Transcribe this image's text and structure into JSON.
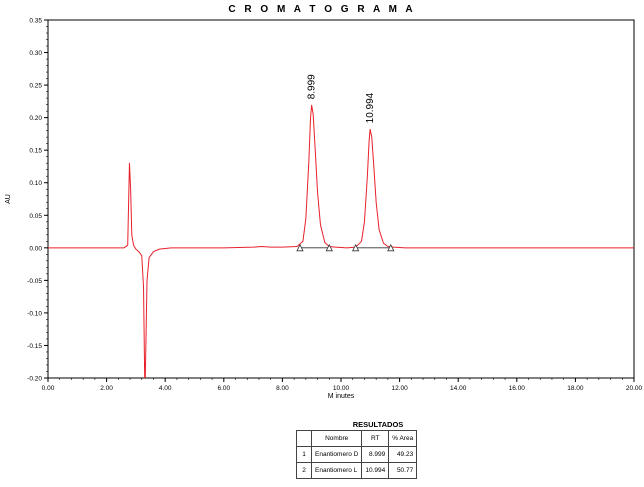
{
  "chart_data": {
    "type": "line",
    "title": "C R O M A T O G R A M A",
    "xlabel": "M inutes",
    "ylabel": "AU",
    "xlim": [
      0,
      20
    ],
    "ylim": [
      -0.2,
      0.35
    ],
    "x_ticks": [
      "0.00",
      "2.00",
      "4.00",
      "6.00",
      "8.00",
      "10.00",
      "12.00",
      "14.00",
      "16.00",
      "18.00",
      "20.00"
    ],
    "y_ticks": [
      "-0.20",
      "-0.15",
      "-0.10",
      "-0.05",
      "0.00",
      "0.05",
      "0.10",
      "0.15",
      "0.20",
      "0.25",
      "0.30",
      "0.35"
    ],
    "series": [
      {
        "color": "#e8202a",
        "x": [
          0,
          2.6,
          2.72,
          2.78,
          2.82,
          2.86,
          2.92,
          3.0,
          3.1,
          3.2,
          3.26,
          3.3,
          3.32,
          3.38,
          3.45,
          3.6,
          3.8,
          4.2,
          5.0,
          6.0,
          7.0,
          7.3,
          7.6,
          8.0,
          8.5,
          8.7,
          8.8,
          8.9,
          8.96,
          8.999,
          9.05,
          9.12,
          9.2,
          9.3,
          9.45,
          9.6,
          9.8,
          10.2,
          10.5,
          10.7,
          10.8,
          10.9,
          10.96,
          10.994,
          11.05,
          11.12,
          11.2,
          11.3,
          11.45,
          11.6,
          11.8,
          12.2,
          14.0,
          16.0,
          18.0,
          20.0
        ],
        "values": [
          0,
          0,
          0.004,
          0.13,
          0.09,
          0.02,
          0.004,
          -0.002,
          -0.006,
          -0.012,
          -0.06,
          -0.2,
          -0.2,
          -0.05,
          -0.015,
          -0.006,
          -0.002,
          0,
          0,
          0,
          0.001,
          0.002,
          0.001,
          0.001,
          0.002,
          0.01,
          0.045,
          0.13,
          0.2,
          0.219,
          0.205,
          0.15,
          0.085,
          0.035,
          0.008,
          0.002,
          0.001,
          0,
          0.001,
          0.01,
          0.04,
          0.11,
          0.165,
          0.182,
          0.17,
          0.125,
          0.07,
          0.028,
          0.007,
          0.002,
          0.001,
          0,
          0,
          0,
          0,
          0
        ]
      }
    ],
    "peak_labels": [
      {
        "text": "8.999",
        "x": 8.999,
        "y": 0.219
      },
      {
        "text": "10.994",
        "x": 10.994,
        "y": 0.182
      }
    ],
    "integration_markers": [
      8.6,
      9.6,
      10.5,
      11.7
    ],
    "grid": false
  },
  "results": {
    "title": "RESULTADOS",
    "headers": [
      "",
      "Nombre",
      "RT",
      "% Area"
    ],
    "rows": [
      [
        "1",
        "Enantiomero D",
        "8.999",
        "49.23"
      ],
      [
        "2",
        "Enantiomero L",
        "10.994",
        "50.77"
      ]
    ]
  }
}
